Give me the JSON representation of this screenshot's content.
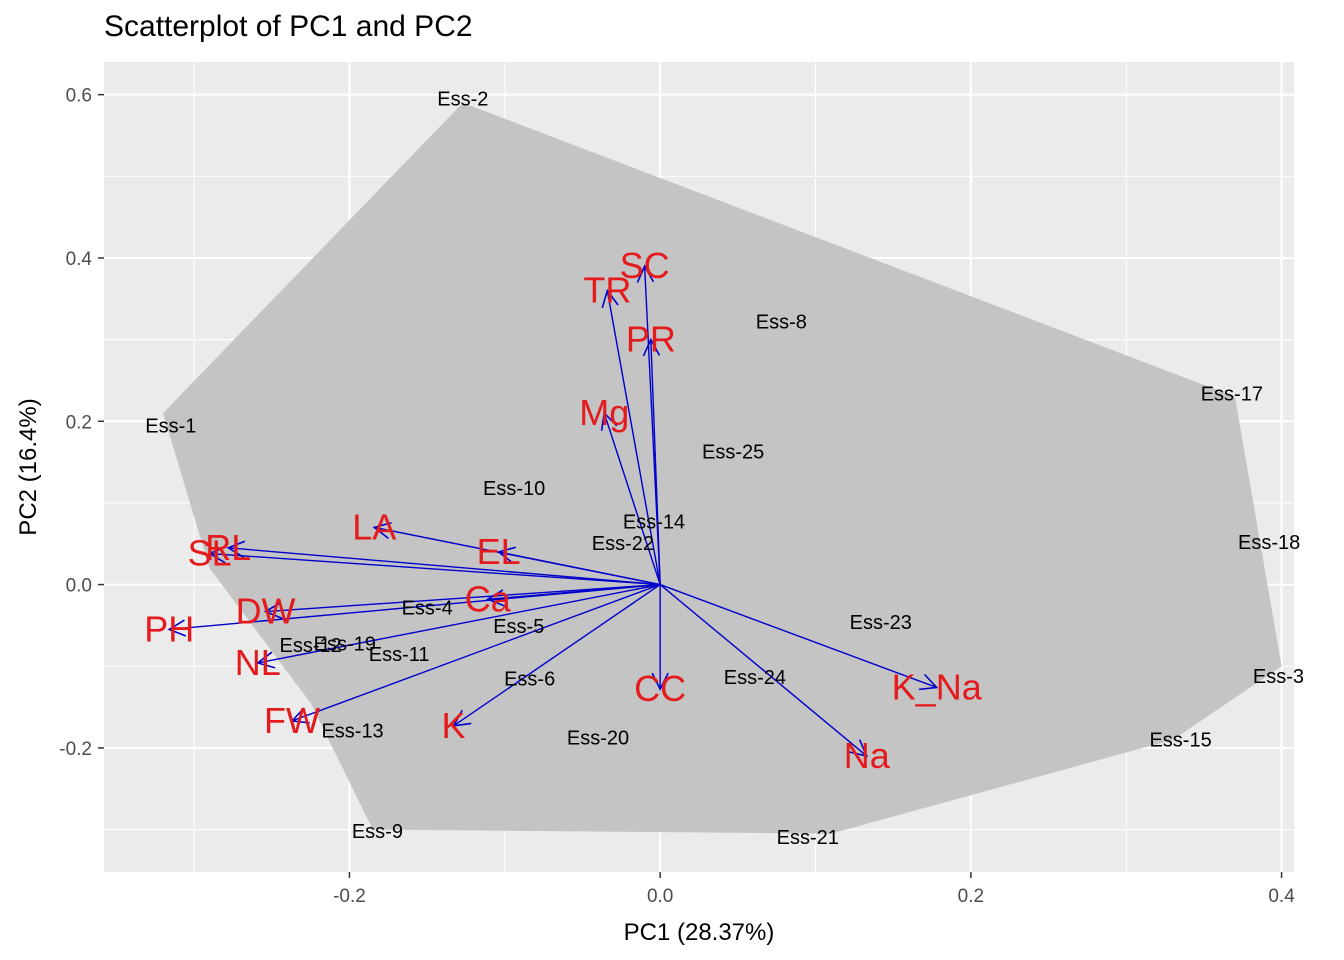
{
  "title": "Scatterplot of PC1 and PC2",
  "chart_data": {
    "type": "scatter",
    "title": "Scatterplot of PC1 and PC2",
    "xlabel": "PC1 (28.37%)",
    "ylabel": "PC2 (16.4%)",
    "xlim": [
      -0.358,
      0.408
    ],
    "ylim": [
      -0.352,
      0.64
    ],
    "x_ticks": [
      -0.2,
      0.0,
      0.2,
      0.4
    ],
    "x_tick_labels": [
      "-0.2",
      "0.0",
      "0.2",
      "0.4"
    ],
    "y_ticks": [
      -0.2,
      0.0,
      0.2,
      0.4,
      0.6
    ],
    "y_tick_labels": [
      "-0.2",
      "0.0",
      "0.2",
      "0.4",
      "0.6"
    ],
    "grid": true,
    "colors": {
      "panel": "#ebebeb",
      "grid": "#ffffff",
      "hull": "#c4c4c4",
      "arrow": "#0000cd",
      "variable_label": "#e41a1c",
      "point_label": "#000000"
    },
    "hull": [
      [
        -0.127,
        0.59
      ],
      [
        0.37,
        0.23
      ],
      [
        0.4,
        -0.1
      ],
      [
        0.33,
        -0.19
      ],
      [
        0.11,
        -0.305
      ],
      [
        -0.185,
        -0.3
      ],
      [
        -0.225,
        -0.145
      ],
      [
        -0.29,
        0.02
      ],
      [
        -0.32,
        0.21
      ]
    ],
    "observations": [
      {
        "label": "Ess-1",
        "x": -0.315,
        "y": 0.195
      },
      {
        "label": "Ess-2",
        "x": -0.127,
        "y": 0.595
      },
      {
        "label": "Ess-3",
        "x": 0.398,
        "y": -0.112
      },
      {
        "label": "Ess-4",
        "x": -0.15,
        "y": -0.028
      },
      {
        "label": "Ess-5",
        "x": -0.091,
        "y": -0.051
      },
      {
        "label": "Ess-6",
        "x": -0.084,
        "y": -0.115
      },
      {
        "label": "Ess-8",
        "x": 0.078,
        "y": 0.322
      },
      {
        "label": "Ess-9",
        "x": -0.182,
        "y": -0.302
      },
      {
        "label": "Ess-10",
        "x": -0.094,
        "y": 0.118
      },
      {
        "label": "Ess-11",
        "x": -0.168,
        "y": -0.085
      },
      {
        "label": "Ess-12",
        "x": -0.225,
        "y": -0.074
      },
      {
        "label": "Ess-13",
        "x": -0.198,
        "y": -0.179
      },
      {
        "label": "Ess-14",
        "x": -0.004,
        "y": 0.077
      },
      {
        "label": "Ess-15",
        "x": 0.335,
        "y": -0.19
      },
      {
        "label": "Ess-17",
        "x": 0.368,
        "y": 0.234
      },
      {
        "label": "Ess-18",
        "x": 0.392,
        "y": 0.052
      },
      {
        "label": "Ess-19",
        "x": -0.203,
        "y": -0.072
      },
      {
        "label": "Ess-20",
        "x": -0.04,
        "y": -0.187
      },
      {
        "label": "Ess-21",
        "x": 0.095,
        "y": -0.309
      },
      {
        "label": "Ess-22",
        "x": -0.024,
        "y": 0.051
      },
      {
        "label": "Ess-23",
        "x": 0.142,
        "y": -0.046
      },
      {
        "label": "Ess-24",
        "x": 0.061,
        "y": -0.113
      },
      {
        "label": "Ess-25",
        "x": 0.047,
        "y": 0.163
      }
    ],
    "loadings": [
      {
        "label": "SC",
        "x": -0.01,
        "y": 0.39
      },
      {
        "label": "TR",
        "x": -0.034,
        "y": 0.36
      },
      {
        "label": "PR",
        "x": -0.006,
        "y": 0.3
      },
      {
        "label": "Mg",
        "x": -0.036,
        "y": 0.21
      },
      {
        "label": "LA",
        "x": -0.184,
        "y": 0.07
      },
      {
        "label": "EL",
        "x": -0.104,
        "y": 0.04
      },
      {
        "label": "RL",
        "x": -0.278,
        "y": 0.045
      },
      {
        "label": "SL",
        "x": -0.29,
        "y": 0.038
      },
      {
        "label": "Ca",
        "x": -0.111,
        "y": -0.018
      },
      {
        "label": "DW",
        "x": -0.254,
        "y": -0.033
      },
      {
        "label": "PH",
        "x": -0.316,
        "y": -0.055
      },
      {
        "label": "NL",
        "x": -0.259,
        "y": -0.096
      },
      {
        "label": "FW",
        "x": -0.237,
        "y": -0.167
      },
      {
        "label": "K",
        "x": -0.133,
        "y": -0.173
      },
      {
        "label": "CC",
        "x": 0.0,
        "y": -0.128
      },
      {
        "label": "K_Na",
        "x": 0.178,
        "y": -0.126
      },
      {
        "label": "Na",
        "x": 0.133,
        "y": -0.21
      }
    ]
  }
}
